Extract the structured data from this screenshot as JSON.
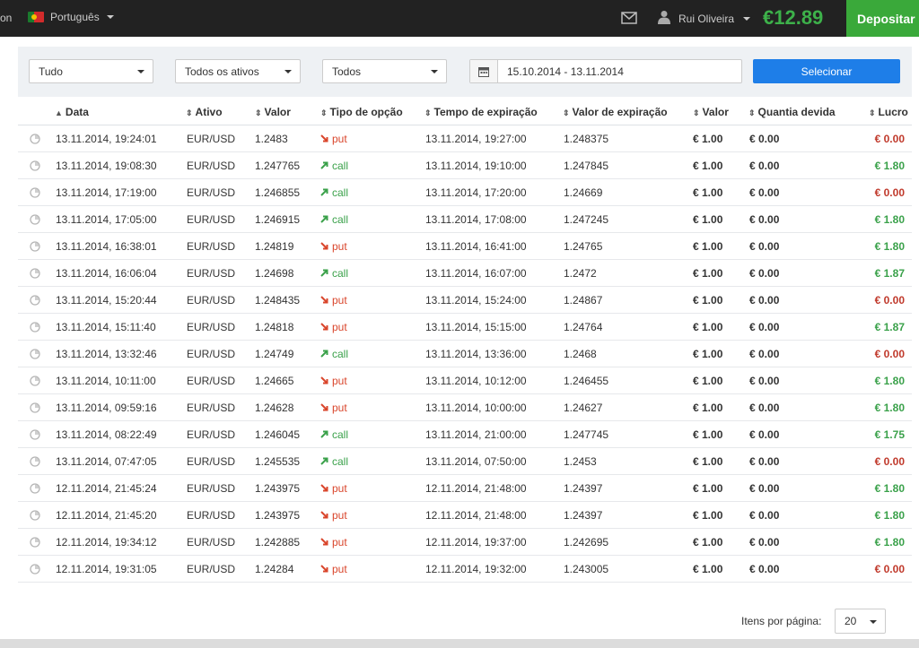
{
  "header": {
    "prev_text": "on",
    "language": "Português",
    "user_name": "Rui Oliveira",
    "balance": "€12.89",
    "deposit_label": "Depositar",
    "icons": {
      "flag": "portugal-flag-icon",
      "mail": "mail-icon",
      "user": "user-icon"
    },
    "colors": {
      "bar": "#222222",
      "balance": "#3db14a",
      "deposit": "#3aa93a"
    }
  },
  "filters": {
    "type": "Tudo",
    "assets": "Todos os ativos",
    "status": "Todos",
    "date_range": "15.10.2014 - 13.11.2014",
    "submit_label": "Selecionar"
  },
  "table": {
    "headers": [
      "Data",
      "Ativo",
      "Valor",
      "Tipo de opção",
      "Tempo de expiração",
      "Valor de expiração",
      "Valor",
      "Quantia devida",
      "Lucro"
    ],
    "rows": [
      {
        "date": "13.11.2014, 19:24:01",
        "asset": "EUR/USD",
        "value": "1.2483",
        "type": "put",
        "exp_time": "13.11.2014, 19:27:00",
        "exp_value": "1.248375",
        "amount": "€ 1.00",
        "due": "€ 0.00",
        "profit": "€ 0.00"
      },
      {
        "date": "13.11.2014, 19:08:30",
        "asset": "EUR/USD",
        "value": "1.247765",
        "type": "call",
        "exp_time": "13.11.2014, 19:10:00",
        "exp_value": "1.247845",
        "amount": "€ 1.00",
        "due": "€ 0.00",
        "profit": "€ 1.80"
      },
      {
        "date": "13.11.2014, 17:19:00",
        "asset": "EUR/USD",
        "value": "1.246855",
        "type": "call",
        "exp_time": "13.11.2014, 17:20:00",
        "exp_value": "1.24669",
        "amount": "€ 1.00",
        "due": "€ 0.00",
        "profit": "€ 0.00"
      },
      {
        "date": "13.11.2014, 17:05:00",
        "asset": "EUR/USD",
        "value": "1.246915",
        "type": "call",
        "exp_time": "13.11.2014, 17:08:00",
        "exp_value": "1.247245",
        "amount": "€ 1.00",
        "due": "€ 0.00",
        "profit": "€ 1.80"
      },
      {
        "date": "13.11.2014, 16:38:01",
        "asset": "EUR/USD",
        "value": "1.24819",
        "type": "put",
        "exp_time": "13.11.2014, 16:41:00",
        "exp_value": "1.24765",
        "amount": "€ 1.00",
        "due": "€ 0.00",
        "profit": "€ 1.80"
      },
      {
        "date": "13.11.2014, 16:06:04",
        "asset": "EUR/USD",
        "value": "1.24698",
        "type": "call",
        "exp_time": "13.11.2014, 16:07:00",
        "exp_value": "1.2472",
        "amount": "€ 1.00",
        "due": "€ 0.00",
        "profit": "€ 1.87"
      },
      {
        "date": "13.11.2014, 15:20:44",
        "asset": "EUR/USD",
        "value": "1.248435",
        "type": "put",
        "exp_time": "13.11.2014, 15:24:00",
        "exp_value": "1.24867",
        "amount": "€ 1.00",
        "due": "€ 0.00",
        "profit": "€ 0.00"
      },
      {
        "date": "13.11.2014, 15:11:40",
        "asset": "EUR/USD",
        "value": "1.24818",
        "type": "put",
        "exp_time": "13.11.2014, 15:15:00",
        "exp_value": "1.24764",
        "amount": "€ 1.00",
        "due": "€ 0.00",
        "profit": "€ 1.87"
      },
      {
        "date": "13.11.2014, 13:32:46",
        "asset": "EUR/USD",
        "value": "1.24749",
        "type": "call",
        "exp_time": "13.11.2014, 13:36:00",
        "exp_value": "1.2468",
        "amount": "€ 1.00",
        "due": "€ 0.00",
        "profit": "€ 0.00"
      },
      {
        "date": "13.11.2014, 10:11:00",
        "asset": "EUR/USD",
        "value": "1.24665",
        "type": "put",
        "exp_time": "13.11.2014, 10:12:00",
        "exp_value": "1.246455",
        "amount": "€ 1.00",
        "due": "€ 0.00",
        "profit": "€ 1.80"
      },
      {
        "date": "13.11.2014, 09:59:16",
        "asset": "EUR/USD",
        "value": "1.24628",
        "type": "put",
        "exp_time": "13.11.2014, 10:00:00",
        "exp_value": "1.24627",
        "amount": "€ 1.00",
        "due": "€ 0.00",
        "profit": "€ 1.80"
      },
      {
        "date": "13.11.2014, 08:22:49",
        "asset": "EUR/USD",
        "value": "1.246045",
        "type": "call",
        "exp_time": "13.11.2014, 21:00:00",
        "exp_value": "1.247745",
        "amount": "€ 1.00",
        "due": "€ 0.00",
        "profit": "€ 1.75"
      },
      {
        "date": "13.11.2014, 07:47:05",
        "asset": "EUR/USD",
        "value": "1.245535",
        "type": "call",
        "exp_time": "13.11.2014, 07:50:00",
        "exp_value": "1.2453",
        "amount": "€ 1.00",
        "due": "€ 0.00",
        "profit": "€ 0.00"
      },
      {
        "date": "12.11.2014, 21:45:24",
        "asset": "EUR/USD",
        "value": "1.243975",
        "type": "put",
        "exp_time": "12.11.2014, 21:48:00",
        "exp_value": "1.24397",
        "amount": "€ 1.00",
        "due": "€ 0.00",
        "profit": "€ 1.80"
      },
      {
        "date": "12.11.2014, 21:45:20",
        "asset": "EUR/USD",
        "value": "1.243975",
        "type": "put",
        "exp_time": "12.11.2014, 21:48:00",
        "exp_value": "1.24397",
        "amount": "€ 1.00",
        "due": "€ 0.00",
        "profit": "€ 1.80"
      },
      {
        "date": "12.11.2014, 19:34:12",
        "asset": "EUR/USD",
        "value": "1.242885",
        "type": "put",
        "exp_time": "12.11.2014, 19:37:00",
        "exp_value": "1.242695",
        "amount": "€ 1.00",
        "due": "€ 0.00",
        "profit": "€ 1.80"
      },
      {
        "date": "12.11.2014, 19:31:05",
        "asset": "EUR/USD",
        "value": "1.24284",
        "type": "put",
        "exp_time": "12.11.2014, 19:32:00",
        "exp_value": "1.243005",
        "amount": "€ 1.00",
        "due": "€ 0.00",
        "profit": "€ 0.00"
      }
    ]
  },
  "pagination": {
    "per_page_label": "Itens por página:",
    "per_page_value": "20"
  }
}
